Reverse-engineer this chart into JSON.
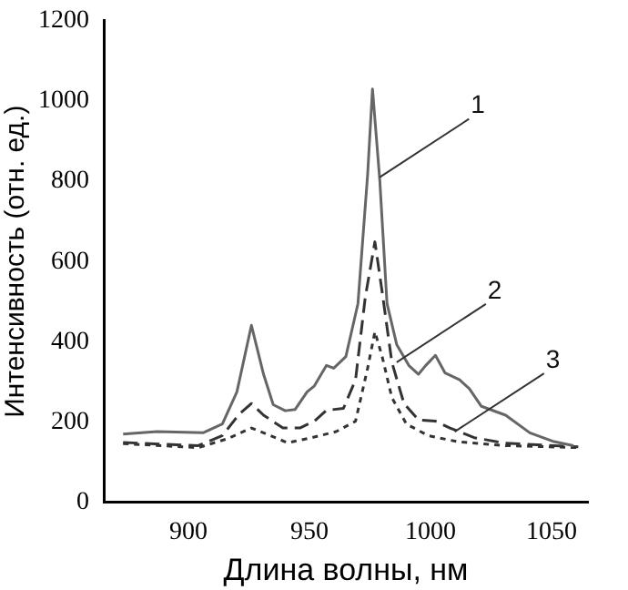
{
  "chart_data": {
    "type": "line",
    "xlabel": "Длина волны, нм",
    "ylabel": "Интенсивность (отн. ед.)",
    "xlim": [
      865,
      1065
    ],
    "xticks": [
      900,
      950,
      1000,
      1050
    ],
    "ylim": [
      0,
      1200
    ],
    "yticks": [
      0,
      200,
      400,
      600,
      800,
      1000,
      1200
    ],
    "grid": false,
    "legend": false,
    "marker": "none",
    "series": [
      {
        "color": "#666666",
        "line_style": "solid",
        "x": [
          873,
          887,
          906,
          914,
          920,
          926,
          931,
          935,
          940,
          944,
          949,
          952,
          957,
          960,
          965,
          970,
          974,
          976,
          979,
          982,
          986,
          991,
          995,
          998,
          1002,
          1006,
          1012,
          1016,
          1021,
          1031,
          1041,
          1051,
          1059
        ],
        "values": [
          170,
          176,
          173,
          195,
          275,
          441,
          319,
          243,
          228,
          231,
          275,
          290,
          341,
          334,
          363,
          495,
          817,
          1030,
          804,
          495,
          393,
          341,
          319,
          341,
          366,
          322,
          305,
          283,
          239,
          217,
          173,
          151,
          141
        ]
      },
      {
        "color": "#333333",
        "line_style": "dashed",
        "x": [
          873,
          904,
          914,
          921,
          926,
          931,
          939,
          946,
          952,
          957,
          964,
          969,
          973,
          977,
          980,
          984,
          989,
          995,
          1002,
          1008,
          1018,
          1031,
          1051,
          1061
        ],
        "values": [
          149,
          141,
          166,
          220,
          246,
          217,
          185,
          185,
          202,
          229,
          234,
          305,
          510,
          649,
          524,
          349,
          246,
          205,
          202,
          185,
          161,
          147,
          141,
          138
        ]
      },
      {
        "color": "#333333",
        "line_style": "dotted",
        "x": [
          873,
          904,
          916,
          926,
          931,
          941,
          951,
          961,
          969,
          974,
          977,
          980,
          984,
          990,
          999,
          1011,
          1031,
          1061
        ],
        "values": [
          146,
          136,
          158,
          185,
          173,
          148,
          161,
          176,
          202,
          334,
          425,
          363,
          261,
          195,
          166,
          151,
          141,
          136
        ]
      }
    ],
    "annotations": [
      {
        "text": "1",
        "x": 979,
        "y": 810
      },
      {
        "text": "2",
        "x": 986,
        "y": 349
      },
      {
        "text": "3",
        "x": 1010,
        "y": 176
      }
    ]
  }
}
